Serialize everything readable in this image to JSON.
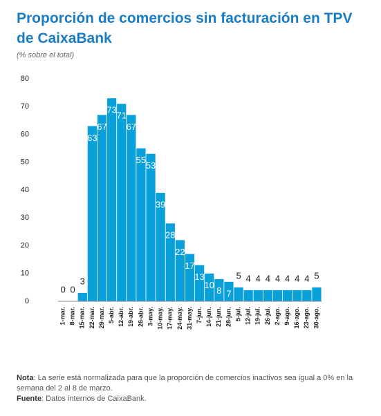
{
  "chart_data": {
    "type": "bar",
    "title": "Proporción de comercios sin facturación en TPV de CaixaBank",
    "subtitle": "(% sobre el total)",
    "categories": [
      "1-mar.",
      "8-mar.",
      "15-mar.",
      "22-mar.",
      "29-mar.",
      "5-abr.",
      "12-abr.",
      "19-abr.",
      "26-abr.",
      "3-may.",
      "10-may.",
      "17-may.",
      "24-may.",
      "31-may.",
      "7-jun.",
      "14-jun.",
      "21-jun.",
      "28-jun.",
      "5-jul.",
      "12-jul.",
      "19-jul.",
      "26-jul.",
      "2-ago.",
      "9-ago.",
      "16-ago.",
      "23-ago.",
      "30-ago."
    ],
    "values": [
      0,
      0,
      3,
      63,
      67,
      73,
      71,
      67,
      55,
      53,
      39,
      28,
      22,
      17,
      13,
      10,
      8,
      7,
      5,
      4,
      4,
      4,
      4,
      4,
      4,
      4,
      5
    ],
    "color": "#0aa0da",
    "ylim": [
      0,
      80
    ],
    "yticks": [
      0,
      10,
      20,
      30,
      40,
      50,
      60,
      70,
      80
    ],
    "grid": false,
    "note_label": "Nota",
    "note": ": La serie está normalizada para que la proporción de comercios inactivos sea igual a 0% en la semana del 2 al 8 de marzo.",
    "source_label": "Fuente",
    "source": ": Datos internos de CaixaBank."
  }
}
